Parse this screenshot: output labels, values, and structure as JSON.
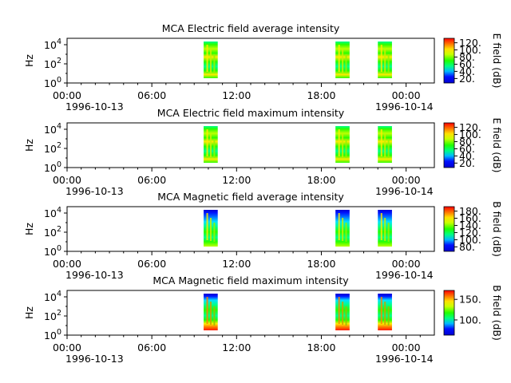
{
  "chart_data": [
    {
      "type": "heatmap",
      "title": "MCA  Electric field average intensity",
      "ylabel": "Hz",
      "colorbar_label": "E field (dB)",
      "colorbar_ticks": [
        "20.",
        "40.",
        "60.",
        "80.",
        "100.",
        "120."
      ],
      "y_ticks": [
        {
          "base": "10",
          "exp": "0"
        },
        {
          "base": "10",
          "exp": "2"
        },
        {
          "base": "10",
          "exp": "4"
        }
      ],
      "x_ticks": [
        "00:00",
        "06:00",
        "12:00",
        "18:00",
        "00:00"
      ],
      "x_dates": [
        "1996-10-13",
        "1996-10-14"
      ],
      "data_blocks": [
        {
          "start": "09:40",
          "end": "10:40"
        },
        {
          "start": "19:00",
          "end": "20:00"
        },
        {
          "start": "22:00",
          "end": "23:00"
        }
      ]
    },
    {
      "type": "heatmap",
      "title": "MCA  Electric field maximum intensity",
      "ylabel": "Hz",
      "colorbar_label": "E field (dB)",
      "colorbar_ticks": [
        "20.",
        "40.",
        "60.",
        "80.",
        "100.",
        "120."
      ],
      "y_ticks": [
        {
          "base": "10",
          "exp": "0"
        },
        {
          "base": "10",
          "exp": "2"
        },
        {
          "base": "10",
          "exp": "4"
        }
      ],
      "x_ticks": [
        "00:00",
        "06:00",
        "12:00",
        "18:00",
        "00:00"
      ],
      "x_dates": [
        "1996-10-13",
        "1996-10-14"
      ],
      "data_blocks": [
        {
          "start": "09:40",
          "end": "10:40"
        },
        {
          "start": "19:00",
          "end": "20:00"
        },
        {
          "start": "22:00",
          "end": "23:00"
        }
      ]
    },
    {
      "type": "heatmap",
      "title": "MCA  Magnetic field average intensity",
      "ylabel": "Hz",
      "colorbar_label": "B field (dB)",
      "colorbar_ticks": [
        "80.",
        "100.",
        "120.",
        "140.",
        "160.",
        "180."
      ],
      "y_ticks": [
        {
          "base": "10",
          "exp": "0"
        },
        {
          "base": "10",
          "exp": "2"
        },
        {
          "base": "10",
          "exp": "4"
        }
      ],
      "x_ticks": [
        "00:00",
        "06:00",
        "12:00",
        "18:00",
        "00:00"
      ],
      "x_dates": [
        "1996-10-13",
        "1996-10-14"
      ],
      "data_blocks": [
        {
          "start": "09:40",
          "end": "10:40"
        },
        {
          "start": "19:00",
          "end": "20:00"
        },
        {
          "start": "22:00",
          "end": "23:00"
        }
      ]
    },
    {
      "type": "heatmap",
      "title": "MCA  Magnetic field maximum intensity",
      "ylabel": "Hz",
      "colorbar_label": "B field (dB)",
      "colorbar_ticks": [
        "100.",
        "150."
      ],
      "y_ticks": [
        {
          "base": "10",
          "exp": "0"
        },
        {
          "base": "10",
          "exp": "2"
        },
        {
          "base": "10",
          "exp": "4"
        }
      ],
      "x_ticks": [
        "00:00",
        "06:00",
        "12:00",
        "18:00",
        "00:00"
      ],
      "x_dates": [
        "1996-10-13",
        "1996-10-14"
      ],
      "data_blocks": [
        {
          "start": "09:40",
          "end": "10:40"
        },
        {
          "start": "19:00",
          "end": "20:00"
        },
        {
          "start": "22:00",
          "end": "23:00"
        }
      ]
    }
  ]
}
